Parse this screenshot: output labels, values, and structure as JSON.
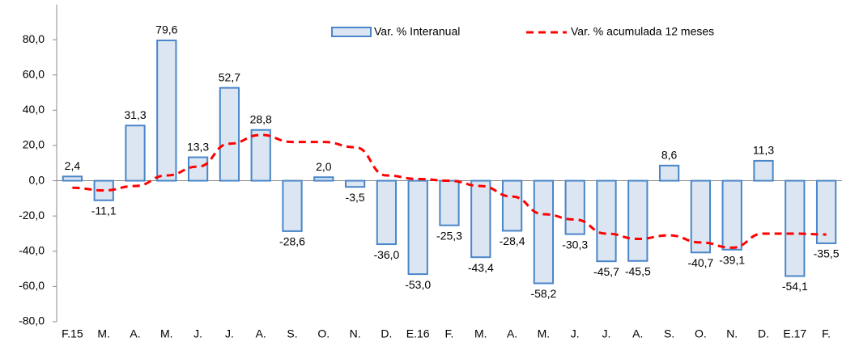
{
  "chart_data": {
    "type": "bar-line",
    "categories": [
      "F.15",
      "M.",
      "A.",
      "M.",
      "J.",
      "J.",
      "A.",
      "S.",
      "O.",
      "N.",
      "D.",
      "E.16",
      "F.",
      "M.",
      "A.",
      "M.",
      "J.",
      "J.",
      "A.",
      "S.",
      "O.",
      "N.",
      "D.",
      "E.17",
      "F."
    ],
    "series": [
      {
        "name": "Var. % Interanual",
        "type": "bar",
        "color": "#dce6f2",
        "edge_color": "#4a86c8",
        "values": [
          2.4,
          -11.1,
          31.3,
          79.6,
          13.3,
          52.7,
          28.8,
          -28.6,
          2.0,
          -3.5,
          -36.0,
          -53.0,
          -25.3,
          -43.4,
          -28.4,
          -58.2,
          -30.3,
          -45.7,
          -45.5,
          8.6,
          -40.7,
          -39.1,
          11.3,
          -54.1,
          -35.5
        ],
        "value_labels": [
          "2,4",
          "-11,1",
          "31,3",
          "79,6",
          "13,3",
          "52,7",
          "28,8",
          "-28,6",
          "2,0",
          "-3,5",
          "-36,0",
          "-53,0",
          "-25,3",
          "-43,4",
          "-28,4",
          "-58,2",
          "-30,3",
          "-45,7",
          "-45,5",
          "8,6",
          "-40,7",
          "-39,1",
          "11,3",
          "-54,1",
          "-35,5"
        ]
      },
      {
        "name": "Var. % acumulada 12 meses",
        "type": "line",
        "color": "#ff0000",
        "dashed": true,
        "values": [
          -4,
          -5.5,
          -3,
          3,
          8,
          21,
          26,
          22,
          22,
          19,
          3,
          1,
          0,
          -3,
          -9,
          -19,
          -22,
          -30,
          -33,
          -31,
          -35,
          -38,
          -30,
          -30,
          -30.5
        ]
      }
    ],
    "ylim": [
      -80,
      100
    ],
    "yticks": [
      {
        "value": -80,
        "label": "-80,0"
      },
      {
        "value": -60,
        "label": "-60,0"
      },
      {
        "value": -40,
        "label": "-40,0"
      },
      {
        "value": -20,
        "label": "-20,0"
      },
      {
        "value": 0,
        "label": "0,0"
      },
      {
        "value": 20,
        "label": "20,0"
      },
      {
        "value": 40,
        "label": "40,0"
      },
      {
        "value": 60,
        "label": "60,0"
      },
      {
        "value": 80,
        "label": "80,0"
      }
    ],
    "legend": "top-right"
  }
}
